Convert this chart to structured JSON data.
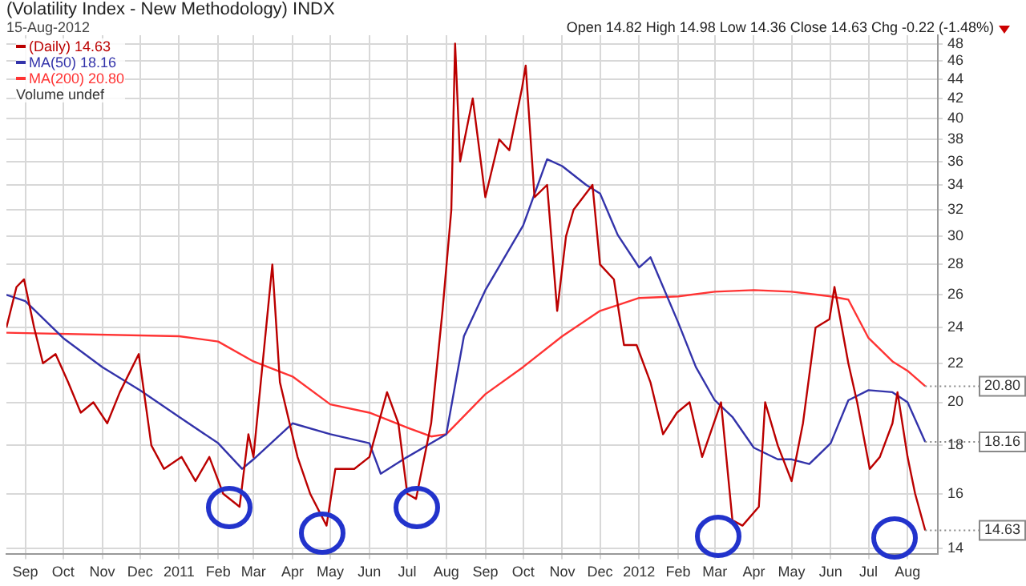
{
  "chart_data": {
    "type": "line",
    "title": "(Volatility Index - New Methodology) INDX",
    "subtitle": "15-Aug-2012",
    "annotations": [
      "Open 14.82 High 14.98 Low 14.36 Close 14.63 Chg -0.22 (-1.48%)",
      "Volume undef",
      {
        "text": "20.80",
        "x": "2012-08-15",
        "y": 20.8
      },
      {
        "text": "18.16",
        "x": "2012-08-15",
        "y": 18.16
      },
      {
        "text": "14.63",
        "x": "2012-08-15",
        "y": 14.63
      }
    ],
    "series": [
      {
        "name": "(Daily) 14.63",
        "color": "#bb0000",
        "x": [
          "2010-08-17",
          "2010-08-25",
          "2010-08-31",
          "2010-09-08",
          "2010-09-15",
          "2010-09-25",
          "2010-10-05",
          "2010-10-15",
          "2010-10-25",
          "2010-11-05",
          "2010-11-15",
          "2010-11-30",
          "2010-12-10",
          "2010-12-20",
          "2011-01-03",
          "2011-01-14",
          "2011-01-25",
          "2011-02-05",
          "2011-02-18",
          "2011-02-25",
          "2011-03-01",
          "2011-03-16",
          "2011-03-22",
          "2011-04-05",
          "2011-04-15",
          "2011-04-28",
          "2011-05-05",
          "2011-05-20",
          "2011-06-01",
          "2011-06-15",
          "2011-06-24",
          "2011-07-01",
          "2011-07-08",
          "2011-07-20",
          "2011-07-29",
          "2011-08-05",
          "2011-08-08",
          "2011-08-12",
          "2011-08-22",
          "2011-09-01",
          "2011-09-12",
          "2011-09-20",
          "2011-09-30",
          "2011-10-03",
          "2011-10-10",
          "2011-10-20",
          "2011-10-28",
          "2011-11-04",
          "2011-11-10",
          "2011-11-25",
          "2011-12-01",
          "2011-12-12",
          "2011-12-20",
          "2011-12-30",
          "2012-01-10",
          "2012-01-20",
          "2012-01-31",
          "2012-02-10",
          "2012-02-20",
          "2012-03-06",
          "2012-03-15",
          "2012-03-23",
          "2012-04-05",
          "2012-04-10",
          "2012-04-20",
          "2012-05-01",
          "2012-05-10",
          "2012-05-20",
          "2012-05-31",
          "2012-06-04",
          "2012-06-15",
          "2012-06-22",
          "2012-07-02",
          "2012-07-10",
          "2012-07-20",
          "2012-07-24",
          "2012-08-01",
          "2012-08-07",
          "2012-08-15"
        ],
        "values": [
          24,
          26.5,
          27,
          24,
          22,
          22.5,
          21,
          19.5,
          20,
          19,
          20.5,
          22.5,
          18,
          17,
          17.5,
          16.5,
          17.5,
          16,
          15.5,
          18.5,
          17.5,
          28,
          21,
          17.5,
          16,
          14.8,
          17,
          17,
          17.5,
          20.5,
          19,
          16,
          15.8,
          19,
          25,
          32,
          48,
          36,
          42,
          33,
          38,
          37,
          43,
          45.5,
          33,
          34,
          25,
          30,
          32,
          34,
          28,
          27,
          23,
          23,
          21,
          18.5,
          19.5,
          20,
          17.5,
          20,
          15,
          14.8,
          15.5,
          20,
          18,
          16.5,
          19,
          24,
          24.5,
          26.5,
          22,
          20,
          17,
          17.5,
          19,
          20.5,
          17.5,
          16,
          14.63
        ]
      },
      {
        "name": "MA(50) 18.16",
        "color": "#3333aa",
        "x": [
          "2010-08-17",
          "2010-09-01",
          "2010-10-01",
          "2010-11-01",
          "2010-12-01",
          "2011-01-01",
          "2011-02-01",
          "2011-02-20",
          "2011-03-01",
          "2011-04-01",
          "2011-05-01",
          "2011-06-01",
          "2011-06-10",
          "2011-07-01",
          "2011-08-01",
          "2011-08-15",
          "2011-09-01",
          "2011-10-01",
          "2011-10-20",
          "2011-11-01",
          "2011-11-20",
          "2011-12-01",
          "2011-12-15",
          "2012-01-01",
          "2012-01-10",
          "2012-02-01",
          "2012-02-15",
          "2012-03-01",
          "2012-03-15",
          "2012-04-01",
          "2012-04-20",
          "2012-05-01",
          "2012-05-15",
          "2012-06-01",
          "2012-06-15",
          "2012-07-01",
          "2012-07-20",
          "2012-08-01",
          "2012-08-15"
        ],
        "values": [
          26,
          25.6,
          23.4,
          21.8,
          20.6,
          19.3,
          18.1,
          17,
          17.4,
          19,
          18.5,
          18.1,
          16.8,
          17.5,
          18.5,
          23.5,
          26.3,
          30.8,
          36.2,
          35.6,
          34,
          33.3,
          30.1,
          27.8,
          28.5,
          24.3,
          21.8,
          20.1,
          19.3,
          17.9,
          17.4,
          17.4,
          17.2,
          18.1,
          20.1,
          20.6,
          20.5,
          20,
          18.16
        ]
      },
      {
        "name": "MA(200) 20.80",
        "color": "#ff3333",
        "x": [
          "2010-08-17",
          "2011-01-01",
          "2011-02-01",
          "2011-03-01",
          "2011-04-01",
          "2011-05-01",
          "2011-06-01",
          "2011-07-01",
          "2011-07-20",
          "2011-08-01",
          "2011-09-01",
          "2011-10-01",
          "2011-11-01",
          "2011-12-01",
          "2012-01-01",
          "2012-02-01",
          "2012-03-01",
          "2012-04-01",
          "2012-05-01",
          "2012-06-01",
          "2012-06-15",
          "2012-07-01",
          "2012-07-20",
          "2012-08-01",
          "2012-08-15"
        ],
        "values": [
          23.7,
          23.5,
          23.2,
          22.1,
          21.3,
          19.9,
          19.5,
          18.8,
          18.4,
          18.5,
          20.4,
          21.8,
          23.5,
          25,
          25.8,
          25.9,
          26.2,
          26.3,
          26.2,
          25.9,
          25.7,
          23.4,
          22.1,
          21.6,
          20.8
        ]
      }
    ],
    "xlim": [
      "2010-08-17",
      "2012-08-25"
    ],
    "xticks": [
      {
        "value": "2010-09-01",
        "label": "Sep"
      },
      {
        "value": "2010-10-01",
        "label": "Oct"
      },
      {
        "value": "2010-11-01",
        "label": "Nov"
      },
      {
        "value": "2010-12-01",
        "label": "Dec"
      },
      {
        "value": "2011-01-01",
        "label": "2011"
      },
      {
        "value": "2011-02-01",
        "label": "Feb"
      },
      {
        "value": "2011-03-01",
        "label": "Mar"
      },
      {
        "value": "2011-04-01",
        "label": "Apr"
      },
      {
        "value": "2011-05-01",
        "label": "May"
      },
      {
        "value": "2011-06-01",
        "label": "Jun"
      },
      {
        "value": "2011-07-01",
        "label": "Jul"
      },
      {
        "value": "2011-08-01",
        "label": "Aug"
      },
      {
        "value": "2011-09-01",
        "label": "Sep"
      },
      {
        "value": "2011-10-01",
        "label": "Oct"
      },
      {
        "value": "2011-11-01",
        "label": "Nov"
      },
      {
        "value": "2011-12-01",
        "label": "Dec"
      },
      {
        "value": "2012-01-01",
        "label": "2012"
      },
      {
        "value": "2012-02-01",
        "label": "Feb"
      },
      {
        "value": "2012-03-01",
        "label": "Mar"
      },
      {
        "value": "2012-04-01",
        "label": "Apr"
      },
      {
        "value": "2012-05-01",
        "label": "May"
      },
      {
        "value": "2012-06-01",
        "label": "Jun"
      },
      {
        "value": "2012-07-01",
        "label": "Jul"
      },
      {
        "value": "2012-08-01",
        "label": "Aug"
      }
    ],
    "ylim": [
      13.8,
      49
    ],
    "yticks": [
      14,
      16,
      18,
      20,
      22,
      24,
      26,
      28,
      30,
      32,
      34,
      36,
      38,
      40,
      42,
      44,
      46,
      48
    ],
    "log": "y",
    "grid": true,
    "legend": "top left",
    "marker": "none",
    "line_style": "solid"
  }
}
